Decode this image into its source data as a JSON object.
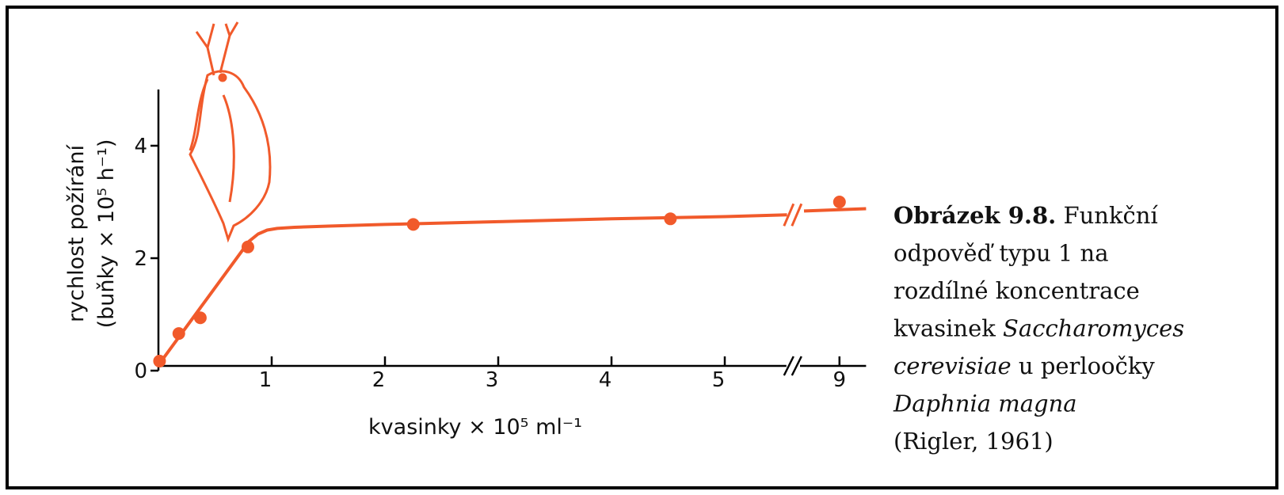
{
  "chart_data": {
    "type": "scatter",
    "y_label_lines": [
      "rychlost požírání",
      "(buňky × 10⁵ h⁻¹)"
    ],
    "x_label": "kvasinky × 10⁵ ml⁻¹",
    "xlim": [
      0,
      5.6
    ],
    "xticks": [
      1,
      2,
      3,
      4,
      5
    ],
    "x2lim": [
      8.6,
      9.3
    ],
    "x2ticks": [
      9
    ],
    "ylim": [
      0,
      5
    ],
    "yticks": [
      0,
      2,
      4
    ],
    "axis_break": true,
    "series": [
      {
        "mode": "markers",
        "color": "#f15a2b",
        "x": [
          0.01,
          0.18,
          0.37,
          0.79,
          2.25,
          4.52
        ],
        "values": [
          0.17,
          0.66,
          0.94,
          2.2,
          2.6,
          2.7
        ]
      },
      {
        "mode": "markers",
        "color": "#f15a2b",
        "xaxis": "x2",
        "x": [
          9
        ],
        "values": [
          3.0
        ]
      },
      {
        "mode": "line",
        "color": "#f15a2b",
        "x": [
          0,
          0.8,
          0.88,
          0.96,
          1.05,
          1.2,
          1.5,
          2,
          3,
          4,
          5,
          5.55
        ],
        "values": [
          0.1,
          2.3,
          2.43,
          2.5,
          2.53,
          2.55,
          2.57,
          2.6,
          2.65,
          2.7,
          2.74,
          2.77
        ]
      },
      {
        "mode": "line",
        "color": "#f15a2b",
        "xaxis": "x2",
        "x": [
          8.6,
          9.3
        ],
        "values": [
          2.84,
          2.88
        ]
      }
    ]
  },
  "caption": {
    "lines": [
      [
        {
          "text": "Obrázek 9.8.",
          "style": "bold"
        },
        {
          "text": " Funkční",
          "style": "normal"
        }
      ],
      [
        {
          "text": "odpověď typu 1 na",
          "style": "normal"
        }
      ],
      [
        {
          "text": "rozdílné koncentrace",
          "style": "normal"
        }
      ],
      [
        {
          "text": "kvasinek ",
          "style": "normal"
        },
        {
          "text": "Saccharomyces",
          "style": "italic"
        }
      ],
      [
        {
          "text": "cerevisiae",
          "style": "italic"
        },
        {
          "text": " u perloočky",
          "style": "normal"
        }
      ],
      [
        {
          "text": "Daphnia magna",
          "style": "italic"
        }
      ],
      [
        {
          "text": "(Rigler, 1961)",
          "style": "normal"
        }
      ]
    ]
  }
}
